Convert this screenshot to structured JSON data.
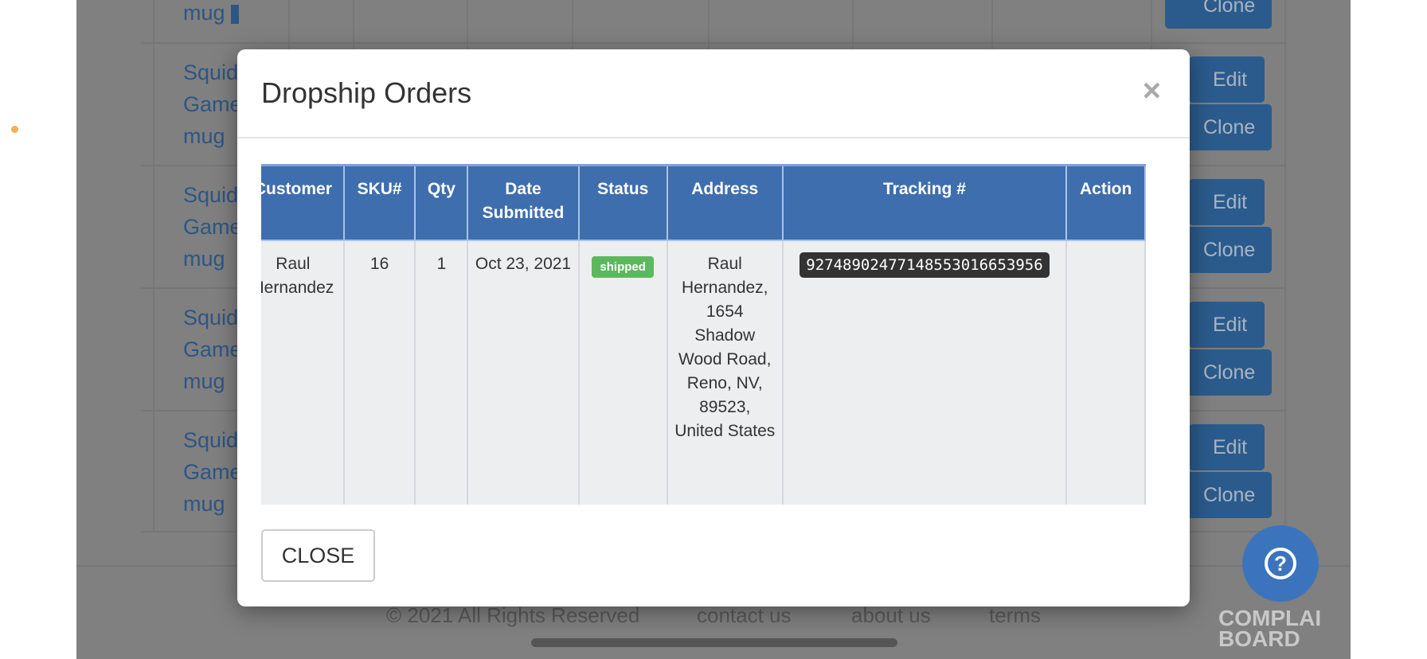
{
  "background": {
    "product_rows": [
      {
        "lines": [
          "mug"
        ]
      },
      {
        "lines": [
          "Squid",
          "Game",
          "mug"
        ]
      },
      {
        "lines": [
          "Squid",
          "Game",
          "mug"
        ]
      },
      {
        "lines": [
          "Squid",
          "Game",
          "mug"
        ]
      },
      {
        "lines": [
          "Squid",
          "Game",
          "mug"
        ]
      }
    ],
    "edit_label": "Edit",
    "clone_label": "Clone",
    "footer": {
      "copyright": "© 2021 All Rights Reserved",
      "contact": "contact us",
      "about": "about us",
      "terms": "terms"
    },
    "watermark": "COMPLAINTS BOARD"
  },
  "modal": {
    "title": "Dropship Orders",
    "close_icon": "×",
    "columns": [
      "Customer",
      "SKU#",
      "Qty",
      "Date Submitted",
      "Status",
      "Address",
      "Tracking #",
      "Action"
    ],
    "rows": [
      {
        "customer": "Raul Hernandez",
        "sku": "16",
        "qty": "1",
        "date": "Oct 23, 2021",
        "status": "shipped",
        "address": "Raul Hernandez, 1654 Shadow Wood Road, Reno, NV, 89523, United States",
        "tracking": "9274890247714855301665395​6",
        "action": ""
      }
    ],
    "close_button": "CLOSE"
  },
  "colors": {
    "header": "#3e6eae",
    "status_shipped": "#5cb85c",
    "overlay": "#808080",
    "help": "#3b74bd"
  }
}
